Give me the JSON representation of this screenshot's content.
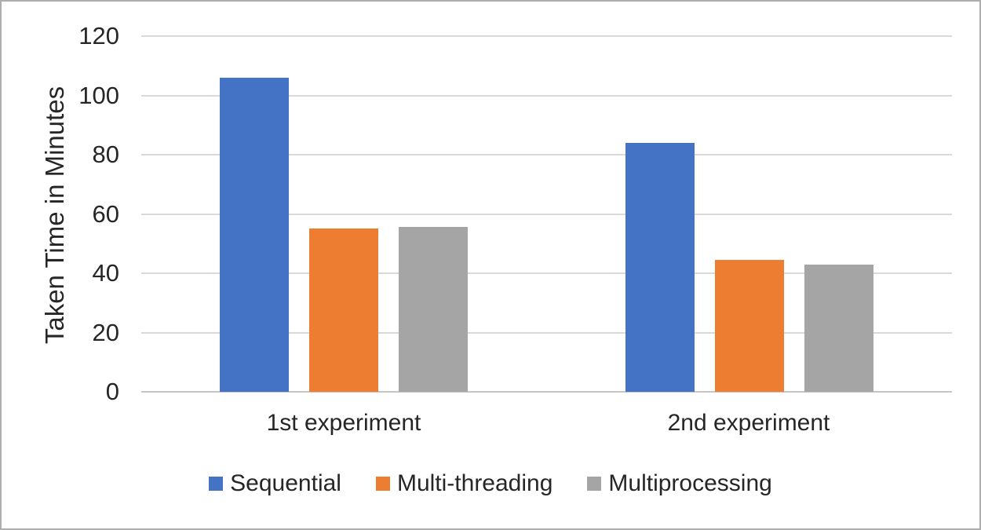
{
  "chart_data": {
    "type": "bar",
    "title": "",
    "xlabel": "",
    "ylabel": "Taken Time in Minutes",
    "categories": [
      "1st experiment",
      "2nd experiment"
    ],
    "series": [
      {
        "name": "Sequential",
        "color": "#4472C4",
        "values": [
          106,
          84
        ]
      },
      {
        "name": "Multi-threading",
        "color": "#ED7D31",
        "values": [
          55,
          44.5
        ]
      },
      {
        "name": "Multiprocessing",
        "color": "#A5A5A5",
        "values": [
          55.5,
          43
        ]
      }
    ],
    "ylim": [
      0,
      120
    ],
    "yticks": [
      0,
      20,
      40,
      60,
      80,
      100,
      120
    ],
    "grid": true,
    "legend_position": "bottom",
    "gridline_color": "#d9d9d9"
  }
}
